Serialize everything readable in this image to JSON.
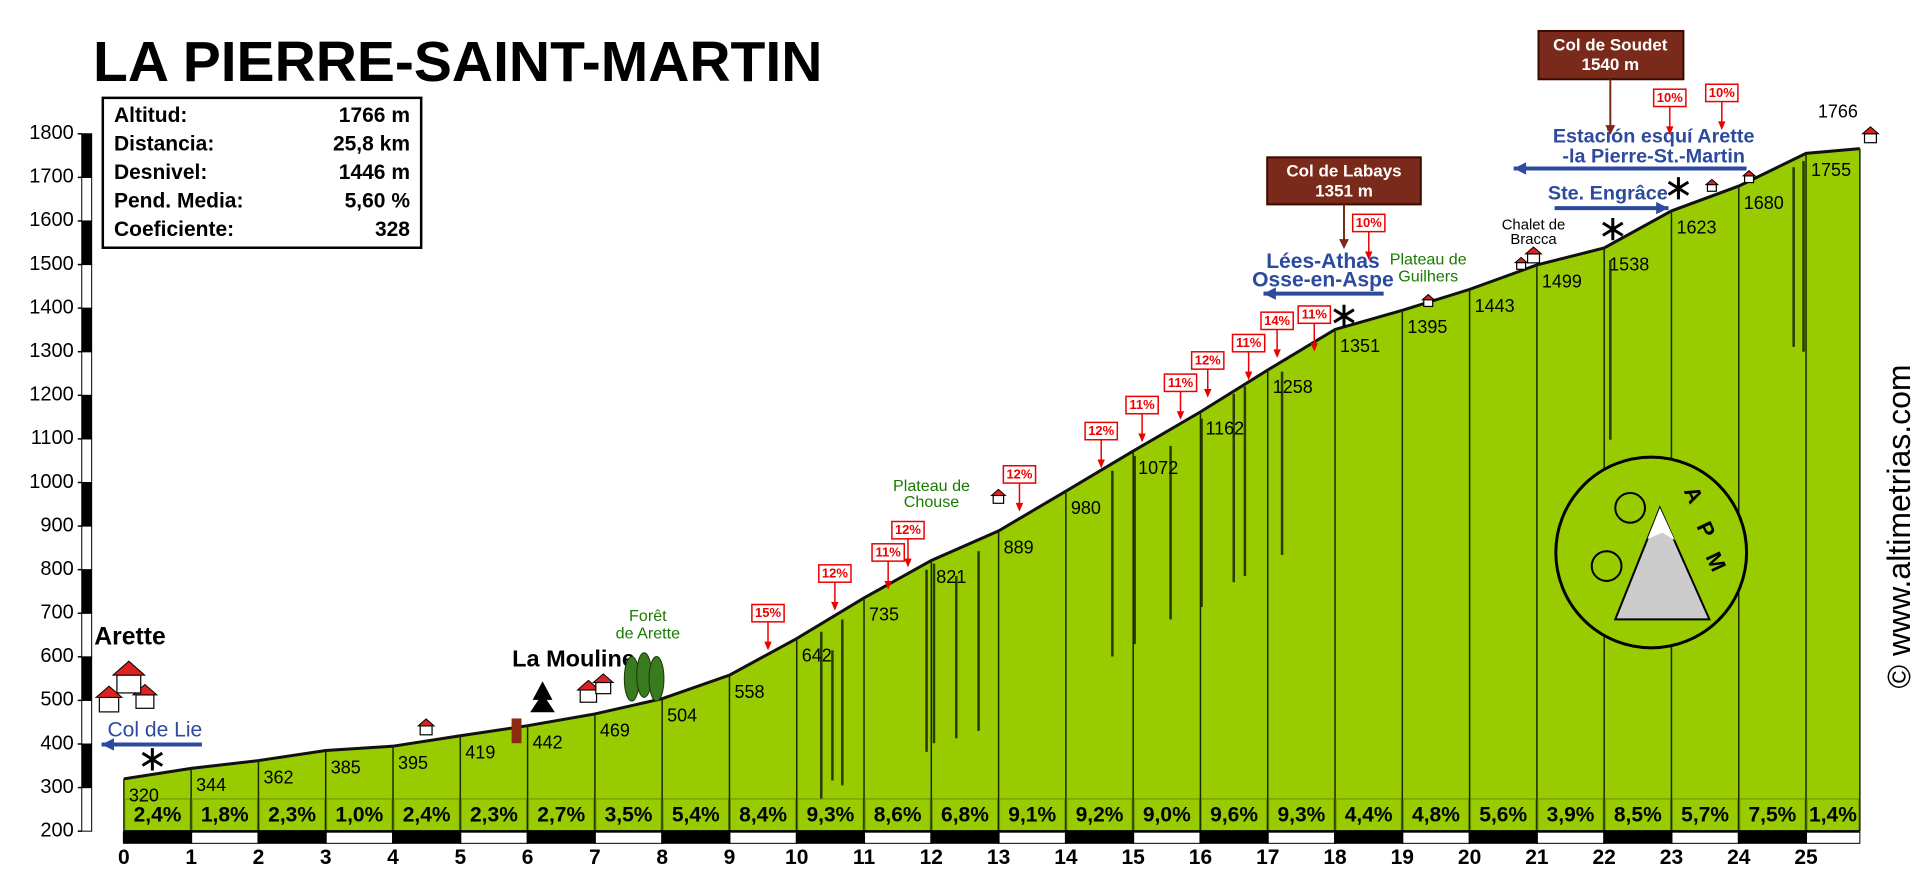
{
  "chart_data": {
    "type": "area",
    "title": "LA PIERRE-SAINT-MARTIN",
    "info_box": [
      {
        "label": "Altitud:",
        "value": "1766 m"
      },
      {
        "label": "Distancia:",
        "value": "25,8 km"
      },
      {
        "label": "Desnivel:",
        "value": "1446 m"
      },
      {
        "label": "Pend. Media:",
        "value": "5,60 %"
      },
      {
        "label": "Coeficiente:",
        "value": "328"
      }
    ],
    "x": [
      0,
      1,
      2,
      3,
      4,
      5,
      6,
      7,
      8,
      9,
      10,
      11,
      12,
      13,
      14,
      15,
      16,
      17,
      18,
      19,
      20,
      21,
      22,
      23,
      24,
      25,
      25.8
    ],
    "values": [
      320,
      344,
      362,
      385,
      395,
      419,
      442,
      469,
      504,
      558,
      642,
      735,
      821,
      889,
      980,
      1072,
      1162,
      1258,
      1351,
      1395,
      1443,
      1499,
      1538,
      1623,
      1680,
      1755,
      1766
    ],
    "color": "#99cc00",
    "segments": {
      "values": [
        2.4,
        1.8,
        2.3,
        1.0,
        2.4,
        2.3,
        2.7,
        3.5,
        5.4,
        8.4,
        9.3,
        8.6,
        6.8,
        9.1,
        9.2,
        9.0,
        9.6,
        9.3,
        4.4,
        4.8,
        5.6,
        3.9,
        8.5,
        5.7,
        7.5,
        1.4
      ],
      "value_labels": [
        "2,4%",
        "1,8%",
        "2,3%",
        "1,0%",
        "2,4%",
        "2,3%",
        "2,7%",
        "3,5%",
        "5,4%",
        "8,4%",
        "9,3%",
        "8,6%",
        "6,8%",
        "9,1%",
        "9,2%",
        "9,0%",
        "9,6%",
        "9,3%",
        "4,4%",
        "4,8%",
        "5,6%",
        "3,9%",
        "8,5%",
        "5,7%",
        "7,5%",
        "1,4%"
      ]
    },
    "xlim": [
      0,
      25.8
    ],
    "xticks": [
      0,
      1,
      2,
      3,
      4,
      5,
      6,
      7,
      8,
      9,
      10,
      11,
      12,
      13,
      14,
      15,
      16,
      17,
      18,
      19,
      20,
      21,
      22,
      23,
      24,
      25
    ],
    "ylim": [
      200,
      1800
    ],
    "yticks": [
      200,
      300,
      400,
      500,
      600,
      700,
      800,
      900,
      1000,
      1100,
      1200,
      1300,
      1400,
      1500,
      1600,
      1700,
      1800
    ],
    "annotations": [
      "Arette",
      "Col de Lie",
      "La Mouline",
      "Forêt",
      "de Arette",
      "Plateau de",
      "Chouse",
      "Lées-Athas",
      "Osse-en-Aspe",
      "Plateau de",
      "Guilhers",
      "Chalet de",
      "Bracca",
      "Ste. Engrâce",
      "Estación esquí Arette",
      "-la Pierre-St.-Martin"
    ],
    "cols": [
      {
        "name": "Col de Labays",
        "altitude": "1351 m"
      },
      {
        "name": "Col de Soudet",
        "altitude": "1540 m"
      }
    ],
    "gradient_flags": [
      "15%",
      "12%",
      "11%",
      "12%",
      "12%",
      "12%",
      "11%",
      "11%",
      "12%",
      "11%",
      "14%",
      "11%",
      "10%",
      "10%",
      "10%"
    ],
    "logo_letters": [
      "A",
      "P",
      "M"
    ],
    "watermark": "© www.altimetrias.com"
  }
}
